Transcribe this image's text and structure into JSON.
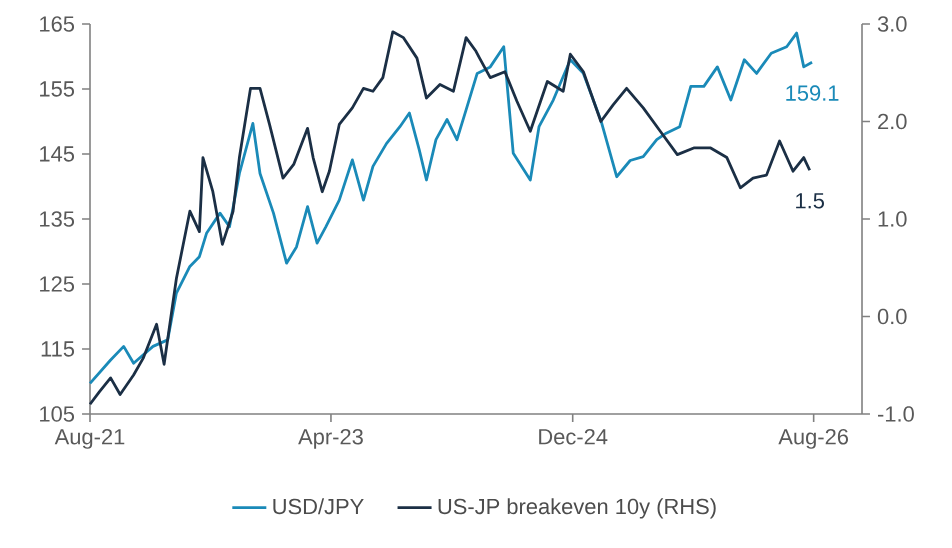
{
  "chart_data": {
    "type": "line",
    "legend": "bottom",
    "line_style": "solid",
    "marker": "none",
    "xlim": [
      "2021-08",
      "2026-12"
    ],
    "xticks": [
      {
        "value": "2021-08",
        "label": "Aug-21"
      },
      {
        "value": "2023-04",
        "label": "Apr-23"
      },
      {
        "value": "2024-12",
        "label": "Dec-24"
      },
      {
        "value": "2026-08",
        "label": "Aug-26"
      }
    ],
    "ylim": [
      105,
      165
    ],
    "yticks": [
      105,
      115,
      125,
      135,
      145,
      155,
      165
    ],
    "y2lim": [
      -1,
      3
    ],
    "y2ticks": [
      {
        "value": -1,
        "label": "-1.0"
      },
      {
        "value": 0,
        "label": "0.0"
      },
      {
        "value": 1,
        "label": "1.0"
      },
      {
        "value": 2,
        "label": "2.0"
      },
      {
        "value": 3,
        "label": "3.0"
      }
    ],
    "series": [
      {
        "name": "USD/JPY",
        "color": "#1a8ab8",
        "x": [
          "2021-08-01",
          "2021-09-22",
          "2021-10-25",
          "2021-11-19",
          "2022-01-07",
          "2022-02-13",
          "2022-03-07",
          "2022-04-10",
          "2022-05-04",
          "2022-05-22",
          "2022-06-25",
          "2022-07-19",
          "2022-08-13",
          "2022-09-16",
          "2022-10-04",
          "2022-11-07",
          "2022-12-10",
          "2023-01-04",
          "2023-02-01",
          "2023-02-25",
          "2023-03-19",
          "2023-04-22",
          "2023-05-25",
          "2023-06-22",
          "2023-07-16",
          "2023-08-19",
          "2023-09-22",
          "2023-10-16",
          "2023-11-10",
          "2023-11-28",
          "2023-12-22",
          "2024-01-19",
          "2024-02-13",
          "2024-03-07",
          "2024-04-04",
          "2024-05-07",
          "2024-06-10",
          "2024-07-04",
          "2024-08-16",
          "2024-09-07",
          "2024-10-13",
          "2024-11-25",
          "2024-12-28",
          "2025-02-10",
          "2025-03-22",
          "2025-04-25",
          "2025-05-28",
          "2025-07-01",
          "2025-07-25",
          "2025-08-28",
          "2025-09-25",
          "2025-10-28",
          "2025-12-01",
          "2026-01-04",
          "2026-02-07",
          "2026-03-10",
          "2026-04-16",
          "2026-05-25",
          "2026-06-19",
          "2026-07-07",
          "2026-07-28"
        ],
        "values": [
          109.7,
          113.3,
          115.4,
          112.8,
          115.4,
          116.4,
          123.6,
          127.7,
          129.2,
          132.8,
          135.9,
          133.8,
          142.0,
          149.7,
          142.0,
          135.9,
          128.2,
          130.7,
          136.9,
          131.3,
          133.8,
          137.9,
          144.1,
          137.9,
          143.1,
          146.6,
          149.2,
          151.3,
          145.6,
          141.0,
          147.2,
          150.3,
          147.2,
          151.8,
          157.4,
          158.4,
          161.5,
          145.1,
          141.0,
          149.2,
          153.3,
          159.5,
          157.4,
          150.2,
          141.5,
          144.0,
          144.6,
          147.2,
          148.2,
          149.2,
          155.4,
          155.4,
          158.4,
          153.3,
          159.5,
          157.4,
          160.5,
          161.5,
          163.6,
          158.4,
          159.1
        ],
        "value_labels": [
          null,
          null,
          null,
          null,
          null,
          null,
          null,
          null,
          null,
          null,
          null,
          null,
          null,
          null,
          null,
          null,
          null,
          null,
          null,
          null,
          null,
          null,
          null,
          null,
          null,
          null,
          null,
          null,
          null,
          null,
          null,
          null,
          null,
          null,
          null,
          null,
          null,
          null,
          null,
          null,
          null,
          null,
          null,
          null,
          null,
          null,
          null,
          null,
          null,
          null,
          null,
          null,
          null,
          null,
          null,
          null,
          null,
          null,
          null,
          null,
          "159.1"
        ]
      },
      {
        "name": "US-JP breakeven 10y (RHS)",
        "color": "#1b2f45",
        "axis": "y2",
        "x": [
          "2021-08-01",
          "2021-08-25",
          "2021-09-22",
          "2021-10-16",
          "2021-11-19",
          "2021-12-13",
          "2022-01-16",
          "2022-02-04",
          "2022-03-07",
          "2022-04-10",
          "2022-05-04",
          "2022-05-13",
          "2022-06-07",
          "2022-07-01",
          "2022-07-28",
          "2022-08-13",
          "2022-09-10",
          "2022-10-04",
          "2022-10-28",
          "2022-12-01",
          "2022-12-28",
          "2023-02-01",
          "2023-02-15",
          "2023-03-10",
          "2023-03-28",
          "2023-04-22",
          "2023-05-25",
          "2023-06-22",
          "2023-07-16",
          "2023-08-10",
          "2023-09-04",
          "2023-10-01",
          "2023-11-04",
          "2023-11-28",
          "2024-01-01",
          "2024-02-04",
          "2024-03-07",
          "2024-04-01",
          "2024-04-10",
          "2024-05-07",
          "2024-06-13",
          "2024-07-13",
          "2024-08-16",
          "2024-09-28",
          "2024-11-07",
          "2024-11-25",
          "2024-12-28",
          "2025-02-10",
          "2025-03-13",
          "2025-04-16",
          "2025-05-28",
          "2025-07-10",
          "2025-08-22",
          "2025-10-04",
          "2025-11-13",
          "2025-12-25",
          "2026-01-28",
          "2026-03-01",
          "2026-04-04",
          "2026-05-07",
          "2026-06-10",
          "2026-07-07",
          "2026-07-22"
        ],
        "values": [
          -0.9,
          -0.77,
          -0.63,
          -0.8,
          -0.6,
          -0.43,
          -0.08,
          -0.49,
          0.39,
          1.08,
          0.87,
          1.63,
          1.28,
          0.74,
          1.08,
          1.63,
          2.34,
          2.34,
          1.97,
          1.42,
          1.56,
          1.93,
          1.63,
          1.28,
          1.49,
          1.97,
          2.14,
          2.34,
          2.31,
          2.45,
          2.92,
          2.86,
          2.65,
          2.24,
          2.38,
          2.31,
          2.86,
          2.72,
          2.65,
          2.45,
          2.51,
          2.21,
          1.9,
          2.41,
          2.31,
          2.69,
          2.51,
          2.0,
          2.17,
          2.34,
          2.14,
          1.9,
          1.66,
          1.73,
          1.73,
          1.63,
          1.32,
          1.42,
          1.45,
          1.8,
          1.49,
          1.63,
          1.5
        ],
        "value_labels": [
          null,
          null,
          null,
          null,
          null,
          null,
          null,
          null,
          null,
          null,
          null,
          null,
          null,
          null,
          null,
          null,
          null,
          null,
          null,
          null,
          null,
          null,
          null,
          null,
          null,
          null,
          null,
          null,
          null,
          null,
          null,
          null,
          null,
          null,
          null,
          null,
          null,
          null,
          null,
          null,
          null,
          null,
          null,
          null,
          null,
          null,
          null,
          null,
          null,
          null,
          null,
          null,
          null,
          null,
          null,
          null,
          null,
          null,
          null,
          null,
          null,
          null,
          "1.5"
        ]
      }
    ]
  }
}
